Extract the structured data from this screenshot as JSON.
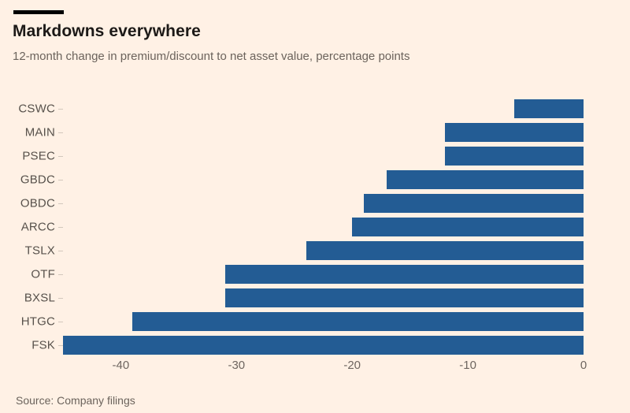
{
  "header": {
    "title": "Markdowns everywhere",
    "subtitle": "12-month change in premium/discount to net asset value, percentage points"
  },
  "source": "Source: Company filings",
  "colors": {
    "background": "#fff1e5",
    "bar": "#235c94",
    "kicker": "#000000",
    "title_text": "#1c1917",
    "muted_text": "#6b635c",
    "axis_label_text": "#6e6660",
    "category_label_text": "#57514b",
    "tick": "#d2c7bc"
  },
  "chart_data": {
    "type": "bar",
    "orientation": "horizontal",
    "title": "Markdowns everywhere",
    "subtitle": "12-month change in premium/discount to net asset value, percentage points",
    "categories": [
      "CSWC",
      "MAIN",
      "PSEC",
      "GBDC",
      "OBDC",
      "ARCC",
      "TSLX",
      "OTF",
      "BXSL",
      "HTGC",
      "FSK"
    ],
    "values": [
      -6,
      -12,
      -12,
      -17,
      -19,
      -20,
      -24,
      -31,
      -31,
      -39,
      -45
    ],
    "xlabel": "",
    "ylabel": "",
    "xlim": [
      -45,
      0
    ],
    "x_ticks": [
      -40,
      -30,
      -20,
      -10,
      0
    ],
    "grid": false,
    "legend": false,
    "bars_anchored_at": 0,
    "source": "Source: Company filings"
  }
}
